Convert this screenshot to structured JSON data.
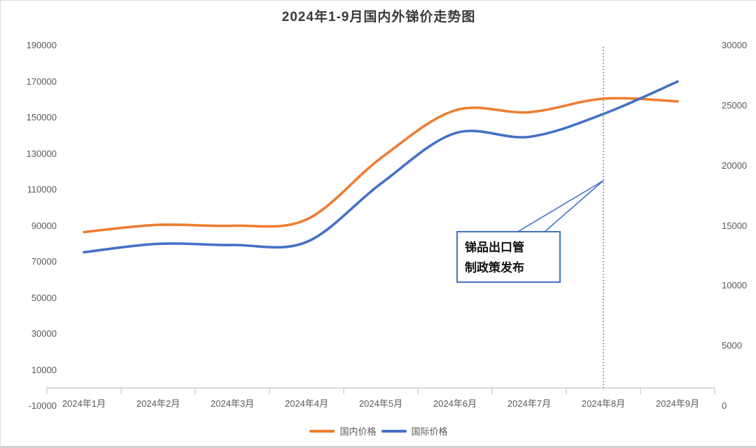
{
  "title": "2024年1-9月国内外锑价走势图",
  "chart_data": {
    "type": "line",
    "smooth": true,
    "grid": false,
    "legend_position": "bottom",
    "categories": [
      "2024年1月",
      "2024年2月",
      "2024年3月",
      "2024年4月",
      "2024年5月",
      "2024年6月",
      "2024年7月",
      "2024年8月",
      "2024年9月"
    ],
    "series": [
      {
        "name": "国内价格",
        "axis": "left",
        "color": "#ED7D31",
        "values": [
          86500,
          90500,
          90000,
          93500,
          127500,
          154000,
          153000,
          160500,
          159000
        ]
      },
      {
        "name": "国际价格",
        "axis": "right",
        "color": "#4472C4",
        "values": [
          12800,
          13500,
          13400,
          13650,
          18500,
          22700,
          22400,
          24300,
          27000
        ]
      }
    ],
    "left_axis": {
      "min": -10000,
      "max": 190000,
      "ticks": [
        190000,
        170000,
        150000,
        130000,
        110000,
        90000,
        70000,
        50000,
        30000,
        10000,
        -10000
      ]
    },
    "right_axis": {
      "min": 0,
      "max": 30000,
      "ticks": [
        30000,
        25000,
        20000,
        15000,
        10000,
        5000,
        0
      ]
    }
  },
  "annotation": {
    "line1": "锑品出口管",
    "line2": "制政策发布",
    "full_text": "锑品出口管制政策发布",
    "anchor_category": "2024年8月",
    "marker": "dashed-vertical-line"
  },
  "colors": {
    "domestic_line": "#ED7D31",
    "international_line": "#4472C4",
    "annotation_border": "#4472C4",
    "axis_line": "#c6c6c6",
    "tick_text": "#595959",
    "title_text": "#3b3b3b"
  }
}
